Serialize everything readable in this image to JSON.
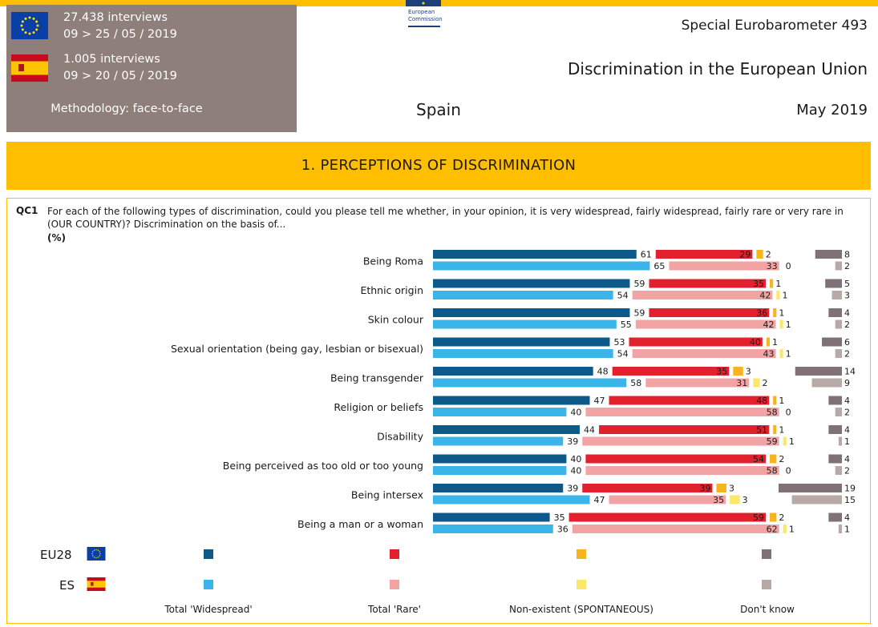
{
  "header": {
    "eu_interviews": "27.438 interviews",
    "eu_dates": "09 > 25 / 05 / 2019",
    "es_interviews": "1.005 interviews",
    "es_dates": "09 > 20 / 05 / 2019",
    "methodology": "Methodology: face-to-face",
    "logo_line1": "European",
    "logo_line2": "Commission",
    "survey": "Special Eurobarometer 493",
    "report_title": "Discrimination in the European Union",
    "country": "Spain",
    "date": "May 2019"
  },
  "section": {
    "title": "1. PERCEPTIONS OF DISCRIMINATION"
  },
  "question": {
    "id": "QC1",
    "text": "For each of the following types of discrimination, could you please tell me whether, in your opinion, it is very widespread, fairly widespread, fairly rare or very rare in (OUR COUNTRY)? Discrimination on the basis of...",
    "unit": "(%)"
  },
  "legend": {
    "eu_code": "EU28",
    "es_code": "ES",
    "labels": [
      "Total 'Widespread'",
      "Total 'Rare'",
      "Non-existent (SPONTANEOUS)",
      "Don't know"
    ]
  },
  "colors": {
    "eu": [
      "#0d5a8a",
      "#e3202e",
      "#f6b41d",
      "#7f7175"
    ],
    "es": [
      "#3bb4ea",
      "#f2a4a4",
      "#fbe86a",
      "#b7a9a6"
    ],
    "brand_yellow": "#ffbf00",
    "meta_box": "#8e7f7b"
  },
  "chart_data": {
    "type": "bar",
    "orientation": "horizontal-stacked",
    "unit": "%",
    "categories": [
      "Being Roma",
      "Ethnic origin",
      "Skin colour",
      "Sexual orientation (being gay, lesbian or bisexual)",
      "Being transgender",
      "Religion or beliefs",
      "Disability",
      "Being perceived as too old or too young",
      "Being intersex",
      "Being a man or a woman"
    ],
    "series": [
      {
        "name": "Total 'Widespread'",
        "eu28": [
          61,
          59,
          59,
          53,
          48,
          47,
          44,
          40,
          39,
          35
        ],
        "es": [
          65,
          54,
          55,
          54,
          58,
          40,
          39,
          40,
          47,
          36
        ]
      },
      {
        "name": "Total 'Rare'",
        "eu28": [
          29,
          35,
          36,
          40,
          35,
          48,
          51,
          54,
          39,
          59
        ],
        "es": [
          33,
          42,
          42,
          43,
          31,
          58,
          59,
          58,
          35,
          62
        ]
      },
      {
        "name": "Non-existent (SPONTANEOUS)",
        "eu28": [
          2,
          1,
          1,
          1,
          3,
          1,
          1,
          2,
          3,
          2
        ],
        "es": [
          0,
          1,
          1,
          1,
          2,
          0,
          1,
          0,
          3,
          1
        ]
      },
      {
        "name": "Don't know",
        "eu28": [
          8,
          5,
          4,
          6,
          14,
          4,
          4,
          4,
          19,
          4
        ],
        "es": [
          2,
          3,
          2,
          2,
          9,
          2,
          1,
          2,
          15,
          1
        ]
      }
    ]
  }
}
